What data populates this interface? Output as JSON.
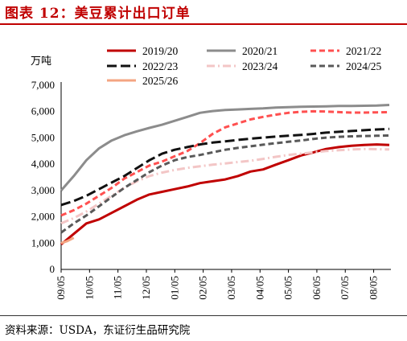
{
  "title": "图表 12：美豆累计出口订单",
  "source": "资料来源：USDA，东证衍生品研究院",
  "chart_data": {
    "type": "line",
    "ylabel": "万吨",
    "ylim": [
      0,
      7000
    ],
    "yticks": [
      "7,000",
      "6,000",
      "5,000",
      "4,000",
      "3,000",
      "2,000",
      "1,000",
      "0"
    ],
    "ytick_values": [
      7000,
      6000,
      5000,
      4000,
      3000,
      2000,
      1000,
      0
    ],
    "xticks": [
      "09/05",
      "10/05",
      "11/05",
      "12/05",
      "01/05",
      "02/05",
      "03/05",
      "04/05",
      "05/05",
      "06/05",
      "07/05",
      "08/05"
    ],
    "xlim_weeks": [
      0,
      52
    ],
    "grid": false,
    "legend_position": "top",
    "series": [
      {
        "name": "2019/20",
        "color": "#c00000",
        "style": "solid",
        "width": 3,
        "x": [
          0,
          2,
          4,
          6,
          8,
          10,
          12,
          14,
          16,
          18,
          20,
          22,
          24,
          26,
          28,
          30,
          32,
          34,
          36,
          38,
          40,
          42,
          44,
          46,
          48,
          50,
          52
        ],
        "y": [
          950,
          1350,
          1750,
          1900,
          2150,
          2400,
          2650,
          2850,
          2950,
          3050,
          3150,
          3280,
          3350,
          3420,
          3550,
          3720,
          3800,
          3980,
          4150,
          4330,
          4450,
          4580,
          4650,
          4700,
          4730,
          4750,
          4730
        ]
      },
      {
        "name": "2020/21",
        "color": "#8c8c8c",
        "style": "solid",
        "width": 3,
        "x": [
          0,
          2,
          4,
          6,
          8,
          10,
          12,
          14,
          16,
          18,
          20,
          22,
          24,
          26,
          28,
          30,
          32,
          34,
          36,
          38,
          40,
          42,
          44,
          46,
          48,
          50,
          52
        ],
        "y": [
          3000,
          3550,
          4150,
          4600,
          4900,
          5100,
          5250,
          5380,
          5500,
          5650,
          5800,
          5950,
          6020,
          6060,
          6080,
          6100,
          6120,
          6150,
          6170,
          6180,
          6190,
          6200,
          6210,
          6210,
          6220,
          6230,
          6250
        ]
      },
      {
        "name": "2021/22",
        "color": "#ff5050",
        "style": "dash",
        "width": 3,
        "x": [
          0,
          2,
          4,
          6,
          8,
          10,
          12,
          14,
          16,
          18,
          20,
          22,
          24,
          26,
          28,
          30,
          32,
          34,
          36,
          38,
          40,
          42,
          44,
          46,
          48,
          50,
          52
        ],
        "y": [
          2050,
          2250,
          2500,
          2800,
          3100,
          3450,
          3700,
          3950,
          4100,
          4300,
          4500,
          4800,
          5150,
          5400,
          5550,
          5700,
          5800,
          5880,
          5950,
          5990,
          6010,
          6000,
          5980,
          5960,
          5960,
          5970,
          5980
        ]
      },
      {
        "name": "2022/23",
        "color": "#111111",
        "style": "longdash",
        "width": 3,
        "x": [
          0,
          2,
          4,
          6,
          8,
          10,
          12,
          14,
          16,
          18,
          20,
          22,
          24,
          26,
          28,
          30,
          32,
          34,
          36,
          38,
          40,
          42,
          44,
          46,
          48,
          50,
          52
        ],
        "y": [
          2450,
          2600,
          2800,
          3050,
          3300,
          3550,
          3850,
          4150,
          4400,
          4550,
          4650,
          4750,
          4820,
          4870,
          4920,
          4970,
          5010,
          5050,
          5080,
          5110,
          5150,
          5200,
          5230,
          5260,
          5290,
          5320,
          5340
        ]
      },
      {
        "name": "2023/24",
        "color": "#f3c6c6",
        "style": "dashdot",
        "width": 3,
        "x": [
          0,
          2,
          4,
          6,
          8,
          10,
          12,
          14,
          16,
          18,
          20,
          22,
          24,
          26,
          28,
          30,
          32,
          34,
          36,
          38,
          40,
          42,
          44,
          46,
          48,
          50,
          52
        ],
        "y": [
          1750,
          1950,
          2200,
          2500,
          2800,
          3100,
          3350,
          3550,
          3680,
          3780,
          3860,
          3920,
          3980,
          4030,
          4080,
          4130,
          4200,
          4280,
          4350,
          4400,
          4450,
          4500,
          4530,
          4560,
          4580,
          4570,
          4560
        ]
      },
      {
        "name": "2024/25",
        "color": "#595959",
        "style": "dash",
        "width": 3,
        "x": [
          0,
          2,
          4,
          6,
          8,
          10,
          12,
          14,
          16,
          18,
          20,
          22,
          24,
          26,
          28,
          30,
          32,
          34,
          36,
          38,
          40,
          42,
          44,
          46,
          48,
          50,
          52
        ],
        "y": [
          1400,
          1750,
          2050,
          2400,
          2750,
          3100,
          3400,
          3700,
          3950,
          4150,
          4270,
          4350,
          4450,
          4550,
          4620,
          4680,
          4740,
          4800,
          4850,
          4900,
          4960,
          5010,
          5040,
          5060,
          5070,
          5080,
          5090
        ]
      },
      {
        "name": "2025/26",
        "color": "#f4a582",
        "style": "solid",
        "width": 3,
        "x": [
          0,
          1,
          2
        ],
        "y": [
          1000,
          1080,
          1200
        ]
      }
    ]
  }
}
